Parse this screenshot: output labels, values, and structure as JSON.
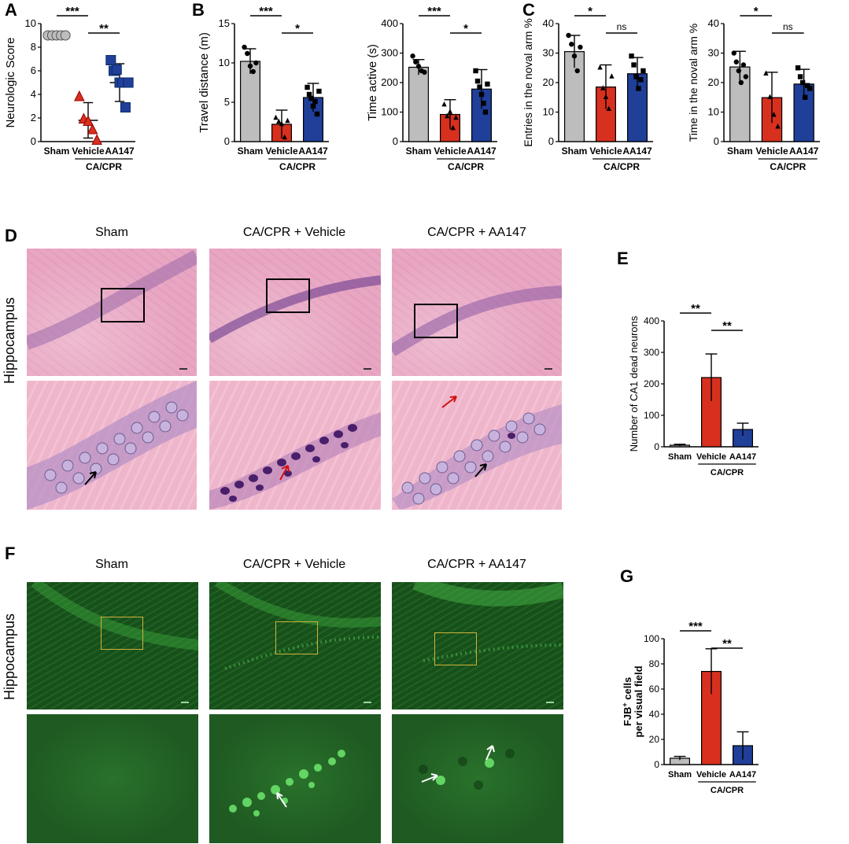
{
  "panels": {
    "A": "A",
    "B": "B",
    "C": "C",
    "D": "D",
    "E": "E",
    "F": "F",
    "G": "G"
  },
  "colors": {
    "sham": "#bdbdbd",
    "vehicle": "#d7301f",
    "aa147": "#1f3f99"
  },
  "shared": {
    "group_label": "CA/CPR"
  },
  "micro": {
    "d_titles": [
      "Sham",
      "CA/CPR + Vehicle",
      "CA/CPR + AA147"
    ],
    "f_titles": [
      "Sham",
      "CA/CPR + Vehicle",
      "CA/CPR + AA147"
    ],
    "row_label": "Hippocampus"
  },
  "chart_data": [
    {
      "id": "A",
      "type": "scatter",
      "ylabel": "Neurologic Score",
      "ylim": [
        0,
        10
      ],
      "yticks": [
        0,
        2,
        4,
        6,
        8,
        10
      ],
      "categories": [
        "Sham",
        "Vehicle",
        "AA147"
      ],
      "points": [
        [
          9,
          9,
          9,
          9,
          9
        ],
        [
          3.8,
          1.9,
          1.7,
          1.0,
          0.1
        ],
        [
          6.9,
          6.0,
          6.1,
          5.0,
          5.0,
          2.9,
          5.0
        ]
      ],
      "means": [
        9,
        1.8,
        5.0
      ],
      "sd": [
        0,
        1.5,
        1.6
      ],
      "sig": [
        {
          "from": 0,
          "to": 1,
          "label": "***"
        },
        {
          "from": 1,
          "to": 2,
          "label": "**"
        }
      ]
    },
    {
      "id": "B1",
      "type": "bar",
      "ylabel": "Travel distance (m)",
      "ylim": [
        0,
        15
      ],
      "yticks": [
        0,
        5,
        10,
        15
      ],
      "categories": [
        "Sham",
        "Vehicle",
        "AA147"
      ],
      "values": [
        10.2,
        2.2,
        5.6
      ],
      "sd": [
        1.6,
        1.8,
        1.8
      ],
      "points": [
        [
          12.0,
          11.2,
          9.6,
          8.9,
          10.0
        ],
        [
          3.0,
          2.5,
          2.2,
          0.5,
          2.6
        ],
        [
          6.9,
          6.0,
          5.5,
          4.5,
          5.1,
          3.5,
          6.4
        ]
      ],
      "sig": [
        {
          "from": 0,
          "to": 1,
          "label": "***"
        },
        {
          "from": 1,
          "to": 2,
          "label": "*"
        }
      ]
    },
    {
      "id": "B2",
      "type": "bar",
      "ylabel": "Time active (s)",
      "ylim": [
        0,
        400
      ],
      "yticks": [
        0,
        100,
        200,
        300,
        400
      ],
      "categories": [
        "Sham",
        "Vehicle",
        "AA147"
      ],
      "values": [
        252,
        92,
        178
      ],
      "sd": [
        26,
        50,
        66
      ],
      "points": [
        [
          290,
          270,
          255,
          240,
          235
        ],
        [
          125,
          85,
          100,
          45,
          80
        ],
        [
          240,
          205,
          185,
          160,
          130,
          100,
          195
        ]
      ],
      "sig": [
        {
          "from": 0,
          "to": 1,
          "label": "***"
        },
        {
          "from": 1,
          "to": 2,
          "label": "*"
        }
      ]
    },
    {
      "id": "C1",
      "type": "bar",
      "ylabel": "Entries in the noval arm %",
      "ylim": [
        0,
        40
      ],
      "yticks": [
        0,
        10,
        20,
        30,
        40
      ],
      "categories": [
        "Sham",
        "Vehicle",
        "AA147"
      ],
      "values": [
        30.5,
        18.5,
        23.0
      ],
      "sd": [
        5.5,
        7.5,
        5.5
      ],
      "points": [
        [
          36,
          33,
          29,
          24,
          32
        ],
        [
          25,
          18,
          15,
          11,
          22
        ],
        [
          29,
          26,
          22,
          18,
          21,
          24
        ]
      ],
      "sig": [
        {
          "from": 0,
          "to": 1,
          "label": "*"
        },
        {
          "from": 1,
          "to": 2,
          "label": "ns"
        }
      ]
    },
    {
      "id": "C2",
      "type": "bar",
      "ylabel": "Time in the noval arm %",
      "ylim": [
        0,
        40
      ],
      "yticks": [
        0,
        10,
        20,
        30,
        40
      ],
      "categories": [
        "Sham",
        "Vehicle",
        "AA147"
      ],
      "values": [
        25.3,
        14.9,
        19.5
      ],
      "sd": [
        5.3,
        8.6,
        5.0
      ],
      "points": [
        [
          30,
          27,
          24,
          20,
          26,
          22
        ],
        [
          23,
          15,
          9,
          5
        ],
        [
          25,
          22,
          20,
          15,
          19,
          18
        ]
      ],
      "sig": [
        {
          "from": 0,
          "to": 1,
          "label": "*"
        },
        {
          "from": 1,
          "to": 2,
          "label": "ns"
        }
      ]
    },
    {
      "id": "E",
      "type": "bar",
      "ylabel": "Number of CA1 dead neurons",
      "ylim": [
        0,
        400
      ],
      "yticks": [
        0,
        100,
        200,
        300,
        400
      ],
      "categories": [
        "Sham",
        "Vehicle",
        "AA147"
      ],
      "values": [
        5,
        220,
        55
      ],
      "sd": [
        3,
        75,
        20
      ],
      "sig": [
        {
          "from": 0,
          "to": 1,
          "label": "**"
        },
        {
          "from": 1,
          "to": 2,
          "label": "**"
        }
      ]
    },
    {
      "id": "G",
      "type": "bar",
      "ylabel_line1": "FJB",
      "ylabel_sup": "+",
      "ylabel_rest": " cells",
      "ylabel_line2": "per visual field",
      "ylim": [
        0,
        100
      ],
      "yticks": [
        0,
        20,
        40,
        60,
        80,
        100
      ],
      "categories": [
        "Sham",
        "Vehicle",
        "AA147"
      ],
      "values": [
        5,
        74,
        15
      ],
      "sd": [
        1.5,
        18,
        11
      ],
      "sig": [
        {
          "from": 0,
          "to": 1,
          "label": "***"
        },
        {
          "from": 1,
          "to": 2,
          "label": "**"
        }
      ]
    }
  ]
}
